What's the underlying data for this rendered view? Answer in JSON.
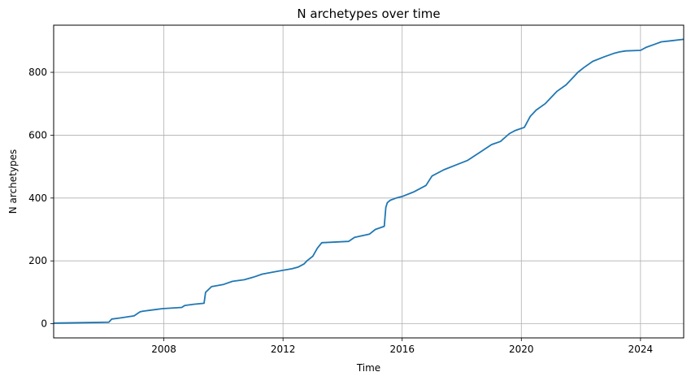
{
  "chart_data": {
    "type": "line",
    "title": "N archetypes over time",
    "xlabel": "Time",
    "ylabel": "N archetypes",
    "xlim": [
      2004.3,
      2025.45
    ],
    "ylim": [
      -45,
      950
    ],
    "xticks": [
      2008,
      2012,
      2016,
      2020,
      2024
    ],
    "xtick_labels": [
      "2008",
      "2012",
      "2016",
      "2020",
      "2024"
    ],
    "yticks": [
      0,
      200,
      400,
      600,
      800
    ],
    "ytick_labels": [
      "0",
      "200",
      "400",
      "600",
      "800"
    ],
    "grid": true,
    "line_color": "#1f77b4",
    "series": [
      {
        "x": [
          2004.3,
          2006.15,
          2006.25,
          2006.5,
          2007.0,
          2007.2,
          2007.3,
          2007.7,
          2007.95,
          2008.6,
          2008.7,
          2009.0,
          2009.35,
          2009.4,
          2009.6,
          2010.0,
          2010.3,
          2010.7,
          2011.0,
          2011.3,
          2011.7,
          2012.0,
          2012.3,
          2012.5,
          2012.7,
          2012.8,
          2013.0,
          2013.15,
          2013.3,
          2014.2,
          2014.4,
          2014.9,
          2015.1,
          2015.4,
          2015.45,
          2015.5,
          2015.6,
          2015.8,
          2016.0,
          2016.4,
          2016.8,
          2017.0,
          2017.4,
          2017.8,
          2018.2,
          2018.6,
          2019.0,
          2019.3,
          2019.6,
          2019.8,
          2020.1,
          2020.3,
          2020.5,
          2020.8,
          2021.0,
          2021.2,
          2021.5,
          2021.8,
          2021.9,
          2022.1,
          2022.4,
          2022.8,
          2023.1,
          2023.3,
          2023.5,
          2024.0,
          2024.2,
          2024.5,
          2024.7,
          2025.0,
          2025.45
        ],
        "y": [
          2,
          5,
          15,
          18,
          25,
          38,
          40,
          45,
          48,
          52,
          58,
          62,
          65,
          100,
          118,
          125,
          135,
          140,
          148,
          158,
          165,
          170,
          175,
          180,
          190,
          200,
          215,
          240,
          258,
          262,
          275,
          285,
          300,
          310,
          370,
          385,
          393,
          400,
          405,
          420,
          440,
          470,
          490,
          505,
          520,
          545,
          570,
          580,
          605,
          615,
          625,
          660,
          680,
          700,
          720,
          740,
          760,
          790,
          800,
          815,
          835,
          850,
          860,
          865,
          868,
          870,
          880,
          890,
          897,
          900,
          905
        ]
      }
    ]
  }
}
